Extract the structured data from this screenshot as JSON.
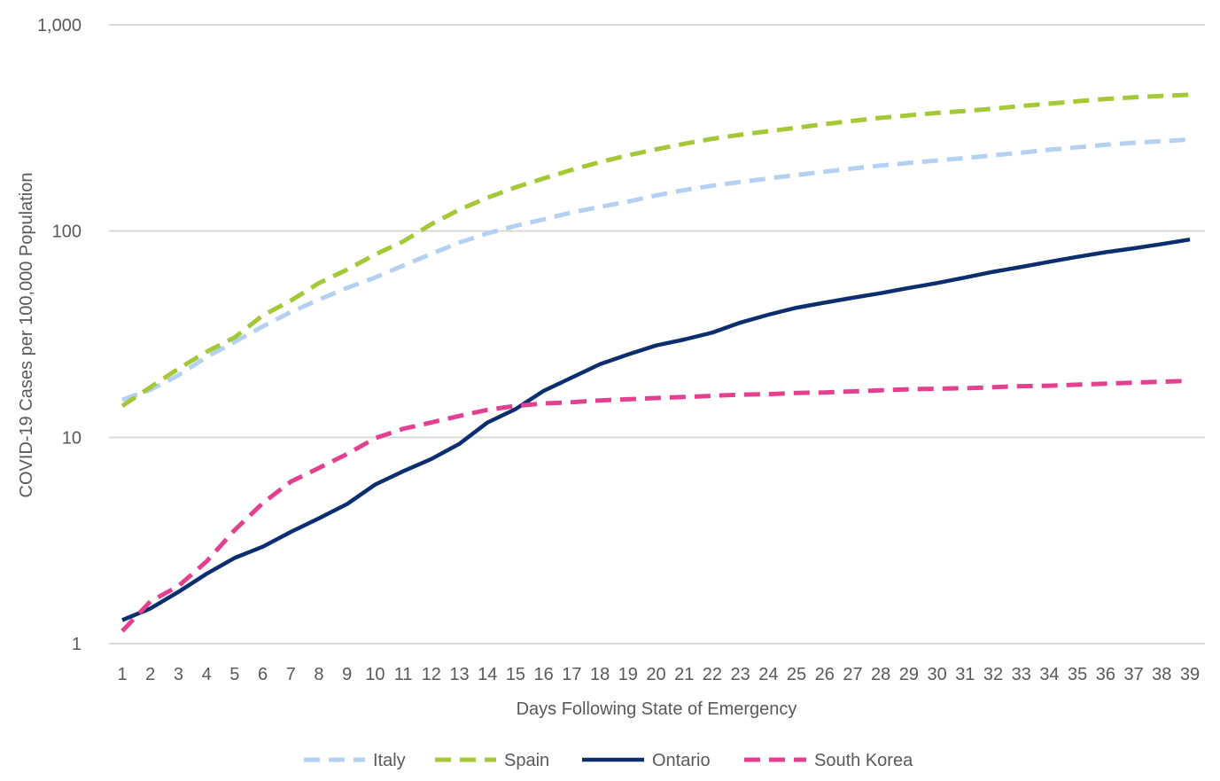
{
  "chart_data": {
    "type": "line",
    "title": "",
    "xlabel": "Days Following State of Emergency",
    "ylabel": "COVID-19 Cases per 100,000 Population",
    "yscale": "log",
    "ylim": [
      1,
      1000
    ],
    "yticks": [
      1,
      10,
      100,
      1000
    ],
    "ytick_labels": [
      "1",
      "10",
      "100",
      "1,000"
    ],
    "x": [
      1,
      2,
      3,
      4,
      5,
      6,
      7,
      8,
      9,
      10,
      11,
      12,
      13,
      14,
      15,
      16,
      17,
      18,
      19,
      20,
      21,
      22,
      23,
      24,
      25,
      26,
      27,
      28,
      29,
      30,
      31,
      32,
      33,
      34,
      35,
      36,
      37,
      38,
      39
    ],
    "grid": "horizontal",
    "legend_position": "bottom",
    "series": [
      {
        "name": "Italy",
        "color": "#b4d1f3",
        "dash": true,
        "values": [
          15.2,
          17.0,
          20.0,
          24.5,
          29.0,
          34.5,
          40.5,
          46.5,
          53.0,
          59.5,
          68.0,
          77.5,
          88.0,
          97.5,
          106,
          114,
          123,
          131,
          139,
          149,
          158,
          166,
          173,
          180,
          187,
          194,
          201,
          208,
          214,
          220,
          226,
          233,
          240,
          248,
          255,
          262,
          268,
          273,
          278
        ]
      },
      {
        "name": "Spain",
        "color": "#a5c936",
        "dash": true,
        "values": [
          14.2,
          17.5,
          21.5,
          26.0,
          30.5,
          39.0,
          46.0,
          56.0,
          65.0,
          77.0,
          89.0,
          108,
          127,
          145,
          163,
          180,
          198,
          216,
          233,
          249,
          265,
          280,
          293,
          305,
          317,
          330,
          342,
          354,
          364,
          374,
          382,
          392,
          404,
          415,
          426,
          437,
          445,
          452,
          458
        ]
      },
      {
        "name": "Ontario",
        "color": "#0b2f6e",
        "dash": false,
        "values": [
          1.3,
          1.48,
          1.78,
          2.18,
          2.6,
          2.95,
          3.48,
          4.05,
          4.75,
          5.9,
          6.85,
          7.85,
          9.3,
          11.8,
          13.7,
          16.8,
          19.5,
          22.6,
          25.2,
          27.9,
          29.8,
          32.2,
          36.0,
          39.3,
          42.5,
          45.0,
          47.5,
          50.0,
          53.0,
          56.0,
          59.5,
          63.5,
          67.0,
          71.0,
          75.0,
          79.0,
          82.5,
          86.5,
          91.0
        ]
      },
      {
        "name": "South Korea",
        "color": "#e3408f",
        "dash": true,
        "values": [
          1.15,
          1.6,
          1.9,
          2.5,
          3.55,
          4.8,
          6.1,
          7.1,
          8.3,
          9.9,
          11.0,
          11.8,
          12.7,
          13.6,
          14.2,
          14.6,
          14.8,
          15.1,
          15.3,
          15.5,
          15.7,
          15.9,
          16.1,
          16.2,
          16.4,
          16.5,
          16.7,
          16.9,
          17.1,
          17.2,
          17.3,
          17.5,
          17.7,
          17.8,
          18.0,
          18.2,
          18.4,
          18.6,
          18.8
        ]
      }
    ]
  }
}
